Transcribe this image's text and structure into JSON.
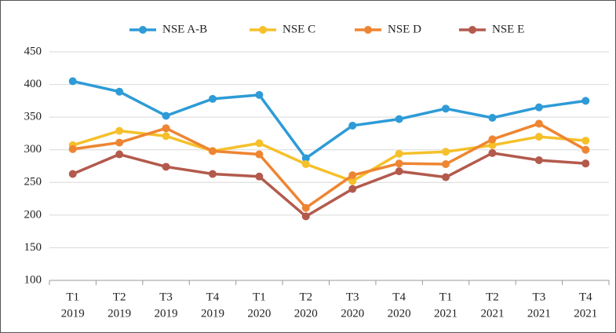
{
  "chart_data": {
    "type": "line",
    "categories": [
      [
        "T1",
        "2019"
      ],
      [
        "T2",
        "2019"
      ],
      [
        "T3",
        "2019"
      ],
      [
        "T4",
        "2019"
      ],
      [
        "T1",
        "2020"
      ],
      [
        "T2",
        "2020"
      ],
      [
        "T3",
        "2020"
      ],
      [
        "T4",
        "2020"
      ],
      [
        "T1",
        "2021"
      ],
      [
        "T2",
        "2021"
      ],
      [
        "T3",
        "2021"
      ],
      [
        "T4",
        "2021"
      ]
    ],
    "series": [
      {
        "name": "NSE A-B",
        "color": "#2e9bd6",
        "values": [
          405,
          389,
          352,
          378,
          384,
          287,
          337,
          347,
          363,
          349,
          365,
          375
        ]
      },
      {
        "name": "NSE C",
        "color": "#f5c02a",
        "values": [
          307,
          329,
          321,
          298,
          310,
          278,
          252,
          294,
          297,
          307,
          320,
          314
        ]
      },
      {
        "name": "NSE D",
        "color": "#ee8532",
        "values": [
          301,
          311,
          333,
          298,
          293,
          211,
          261,
          279,
          278,
          316,
          340,
          300
        ]
      },
      {
        "name": "NSE E",
        "color": "#b35a4d",
        "values": [
          263,
          293,
          274,
          263,
          259,
          198,
          240,
          267,
          258,
          295,
          284,
          279
        ]
      }
    ],
    "ylim": [
      100,
      450
    ],
    "yticks": [
      100,
      150,
      200,
      250,
      300,
      350,
      400,
      450
    ],
    "grid": true,
    "legend": "top"
  }
}
